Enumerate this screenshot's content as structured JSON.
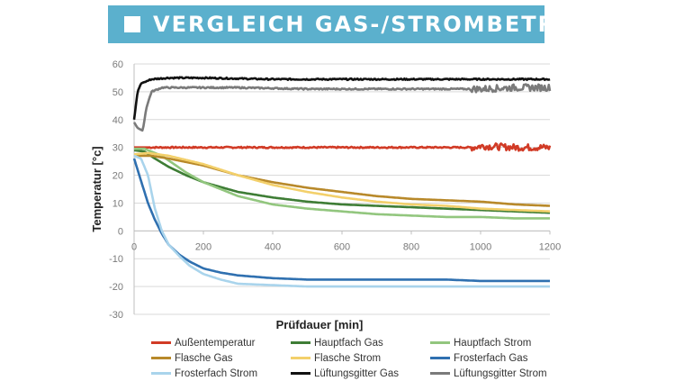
{
  "title": "VERGLEICH GAS-/STROMBETRIEB",
  "chart_data": {
    "type": "line",
    "xlabel": "Prüfdauer [min]",
    "ylabel": "Temperatur [°c]",
    "xlim": [
      0,
      1200
    ],
    "ylim": [
      -30,
      60
    ],
    "x_ticks": [
      0,
      200,
      400,
      600,
      800,
      1000,
      1200
    ],
    "y_ticks": [
      -30,
      -20,
      -10,
      0,
      10,
      20,
      30,
      40,
      50,
      60
    ],
    "grid": "horizontal",
    "legend_position": "bottom",
    "series": [
      {
        "name": "Außentemperatur",
        "color": "#d13b26",
        "noise": "high-at-end",
        "points": [
          [
            0,
            30
          ],
          [
            200,
            30
          ],
          [
            400,
            30
          ],
          [
            600,
            30
          ],
          [
            800,
            30
          ],
          [
            980,
            30
          ],
          [
            1000,
            30.5
          ],
          [
            1100,
            30
          ],
          [
            1200,
            30
          ]
        ]
      },
      {
        "name": "Hauptfach Gas",
        "color": "#3e7d35",
        "points": [
          [
            0,
            29
          ],
          [
            30,
            28.5
          ],
          [
            60,
            26
          ],
          [
            100,
            23
          ],
          [
            150,
            20
          ],
          [
            200,
            17.5
          ],
          [
            300,
            14
          ],
          [
            400,
            12
          ],
          [
            500,
            10.5
          ],
          [
            600,
            9.5
          ],
          [
            700,
            9
          ],
          [
            800,
            8.5
          ],
          [
            900,
            8
          ],
          [
            1000,
            7.5
          ],
          [
            1100,
            7
          ],
          [
            1200,
            6.5
          ]
        ]
      },
      {
        "name": "Hauptfach Strom",
        "color": "#92c67e",
        "points": [
          [
            0,
            29.5
          ],
          [
            30,
            29.5
          ],
          [
            80,
            27
          ],
          [
            150,
            21
          ],
          [
            200,
            17.5
          ],
          [
            300,
            12.5
          ],
          [
            400,
            9.5
          ],
          [
            500,
            8
          ],
          [
            600,
            7
          ],
          [
            700,
            6
          ],
          [
            800,
            5.5
          ],
          [
            900,
            5
          ],
          [
            1000,
            5
          ],
          [
            1100,
            4.5
          ],
          [
            1200,
            4.5
          ]
        ]
      },
      {
        "name": "Flasche Gas",
        "color": "#b8892a",
        "points": [
          [
            0,
            27
          ],
          [
            50,
            27
          ],
          [
            100,
            26
          ],
          [
            200,
            23.5
          ],
          [
            300,
            20
          ],
          [
            400,
            17.5
          ],
          [
            500,
            15.5
          ],
          [
            600,
            14
          ],
          [
            700,
            12.5
          ],
          [
            800,
            11.5
          ],
          [
            900,
            11
          ],
          [
            1000,
            10.5
          ],
          [
            1100,
            9.5
          ],
          [
            1200,
            9
          ]
        ]
      },
      {
        "name": "Flasche Strom",
        "color": "#f3d06b",
        "points": [
          [
            0,
            27.5
          ],
          [
            40,
            28
          ],
          [
            100,
            27
          ],
          [
            200,
            24
          ],
          [
            300,
            20
          ],
          [
            400,
            16.5
          ],
          [
            500,
            14
          ],
          [
            600,
            12
          ],
          [
            700,
            10.5
          ],
          [
            800,
            9.5
          ],
          [
            900,
            9
          ],
          [
            1000,
            8
          ],
          [
            1100,
            7.5
          ],
          [
            1200,
            7
          ]
        ]
      },
      {
        "name": "Frosterfach Gas",
        "color": "#2f70b0",
        "points": [
          [
            0,
            26
          ],
          [
            20,
            18
          ],
          [
            40,
            10
          ],
          [
            60,
            4
          ],
          [
            80,
            -1
          ],
          [
            100,
            -5
          ],
          [
            130,
            -8.5
          ],
          [
            160,
            -11
          ],
          [
            200,
            -13.5
          ],
          [
            250,
            -15
          ],
          [
            300,
            -16
          ],
          [
            400,
            -17
          ],
          [
            500,
            -17.5
          ],
          [
            600,
            -17.5
          ],
          [
            700,
            -17.5
          ],
          [
            800,
            -17.5
          ],
          [
            900,
            -17.5
          ],
          [
            1000,
            -18
          ],
          [
            1100,
            -18
          ],
          [
            1200,
            -18
          ]
        ]
      },
      {
        "name": "Frosterfach Strom",
        "color": "#a9d4ec",
        "points": [
          [
            0,
            27
          ],
          [
            20,
            26
          ],
          [
            40,
            20
          ],
          [
            60,
            8
          ],
          [
            80,
            0
          ],
          [
            100,
            -5
          ],
          [
            130,
            -9
          ],
          [
            160,
            -12.5
          ],
          [
            200,
            -15.5
          ],
          [
            250,
            -17.5
          ],
          [
            300,
            -19
          ],
          [
            400,
            -19.5
          ],
          [
            500,
            -20
          ],
          [
            600,
            -20
          ],
          [
            700,
            -20
          ],
          [
            800,
            -20
          ],
          [
            900,
            -20
          ],
          [
            1000,
            -20
          ],
          [
            1100,
            -20
          ],
          [
            1200,
            -20
          ]
        ]
      },
      {
        "name": "Lüftungsgitter Gas",
        "color": "#111111",
        "noise": "low",
        "points": [
          [
            0,
            40
          ],
          [
            10,
            50
          ],
          [
            20,
            53
          ],
          [
            50,
            54.5
          ],
          [
            100,
            55
          ],
          [
            200,
            55
          ],
          [
            400,
            54.5
          ],
          [
            600,
            54.5
          ],
          [
            800,
            54.5
          ],
          [
            1000,
            54.5
          ],
          [
            1200,
            54.5
          ]
        ]
      },
      {
        "name": "Lüftungsgitter Strom",
        "color": "#7a7a7a",
        "noise": "high-at-end",
        "points": [
          [
            0,
            39
          ],
          [
            10,
            37
          ],
          [
            25,
            36
          ],
          [
            35,
            44
          ],
          [
            50,
            50
          ],
          [
            80,
            51.5
          ],
          [
            150,
            51.5
          ],
          [
            300,
            51.5
          ],
          [
            500,
            51
          ],
          [
            700,
            51
          ],
          [
            900,
            51
          ],
          [
            1000,
            51
          ],
          [
            1100,
            51.5
          ],
          [
            1200,
            51.5
          ]
        ]
      }
    ]
  }
}
